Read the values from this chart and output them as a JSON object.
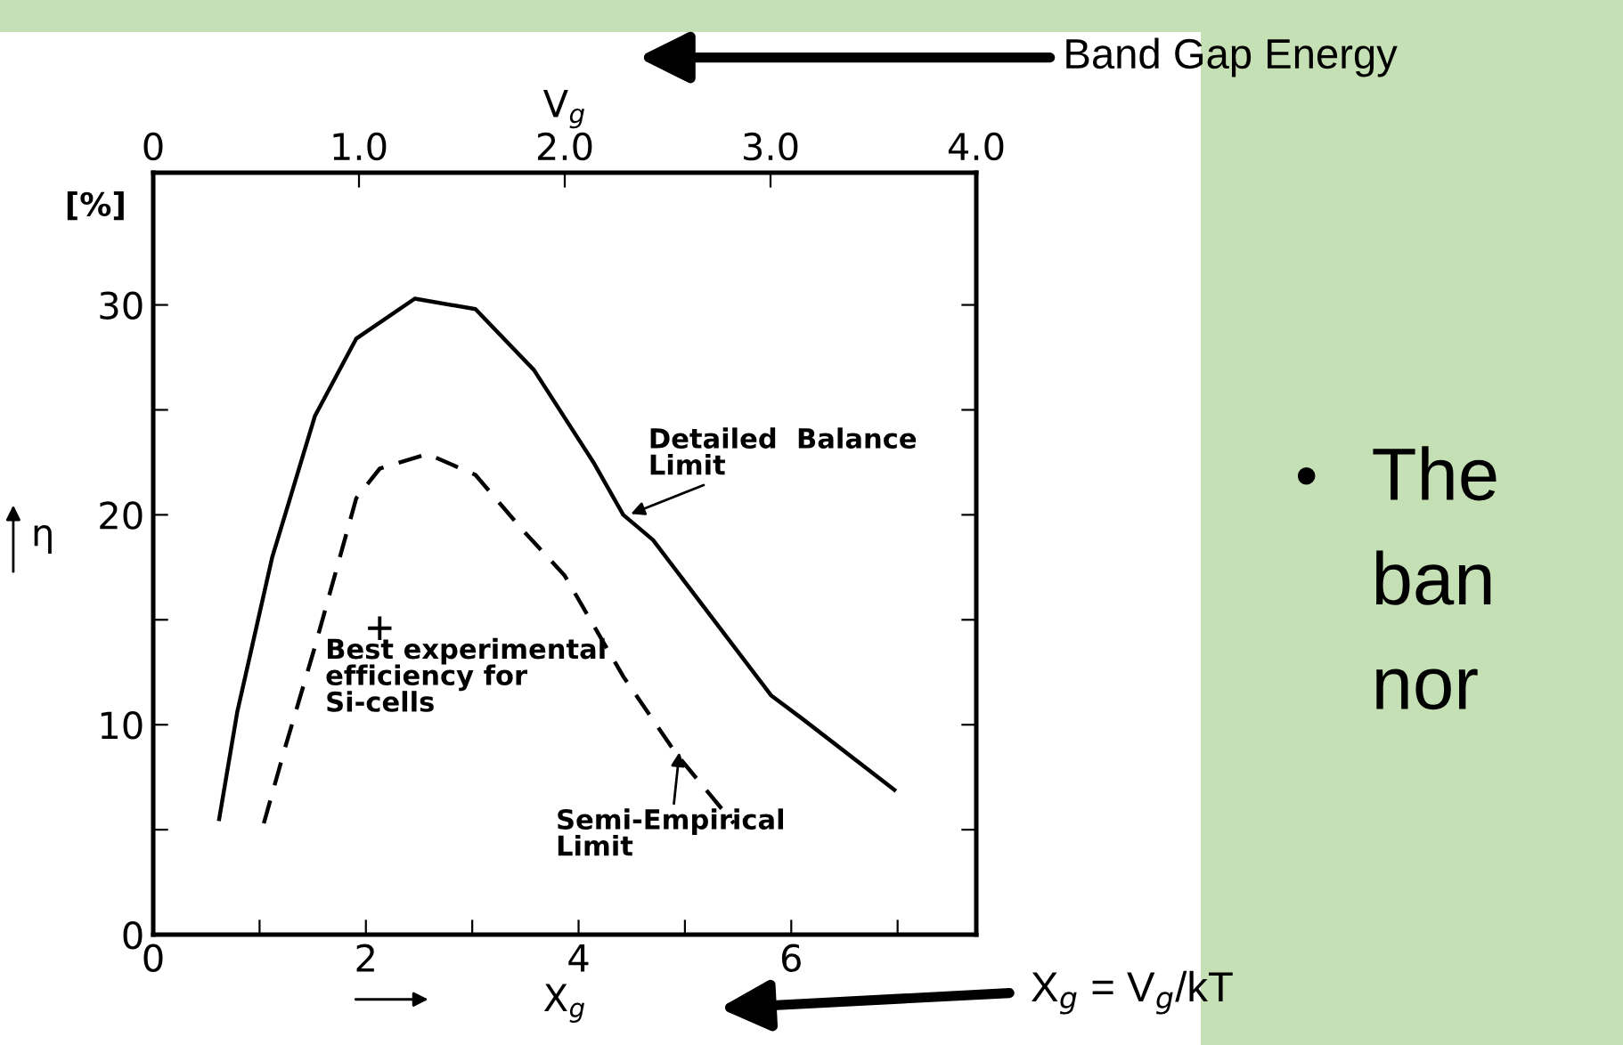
{
  "chart_data": {
    "type": "line",
    "xlabel": "X$_{g}$",
    "x2label": "V$_{g}$",
    "ylabel": "η",
    "xlim": [
      0,
      7.74
    ],
    "xticks": [
      0,
      {
        "value": 1,
        "label": null
      },
      2,
      {
        "value": 3,
        "label": null
      },
      4,
      {
        "value": 5,
        "label": null
      },
      6,
      {
        "value": 7,
        "label": null
      }
    ],
    "x2lim": [
      0,
      4
    ],
    "x2ticks": [
      0,
      {
        "value": 1,
        "label": "1.0"
      },
      {
        "value": 2,
        "label": "2.0"
      },
      {
        "value": 3,
        "label": "3.0"
      },
      {
        "value": 4,
        "label": "4.0"
      }
    ],
    "ylim": [
      0,
      36.3
    ],
    "yticks": [
      0,
      {
        "value": 5,
        "label": null
      },
      10,
      {
        "value": 15,
        "label": null
      },
      20,
      {
        "value": 25,
        "label": null
      },
      30
    ],
    "grid": false,
    "legend": false,
    "series": [
      {
        "color": "#000000",
        "line_style": "solid",
        "x": [
          0.62,
          0.79,
          1.12,
          1.24,
          1.52,
          1.91,
          2.46,
          3.03,
          3.58,
          4.14,
          4.42,
          4.7,
          5.81,
          6.1,
          6.97
        ],
        "values": [
          5.5,
          10.6,
          18,
          20,
          24.7,
          28.4,
          30.3,
          29.8,
          26.9,
          22.5,
          20,
          18.8,
          11.4,
          10.3,
          6.9
        ]
      },
      {
        "color": "#000000",
        "line_style": "dashed",
        "x": [
          1.04,
          1.24,
          1.52,
          1.91,
          2.13,
          2.58,
          3.03,
          3.47,
          3.87,
          4.42,
          4.92,
          5.46
        ],
        "values": [
          5.3,
          8.9,
          13.7,
          20.8,
          22.2,
          22.9,
          21.9,
          19.3,
          17.1,
          12.3,
          8.6,
          5.3
        ]
      },
      {
        "type": "scatter",
        "marker": "cross",
        "color": "#000000",
        "x": [
          2.13
        ],
        "values": [
          14.6
        ]
      }
    ],
    "annotations": [
      "[%]",
      {
        "text": "Detailed  Balance\nLimit",
        "x": 4.47,
        "y": 20
      },
      {
        "text": "Best experimental\nefficiency for\nSi-cells",
        "x": 2.13,
        "y": 14.6
      },
      {
        "text": "Semi-Empirical\nLimit",
        "x": 4.95,
        "y": 8.8
      },
      "Band Gap Energy",
      "X$_{g}$ = V$_{g}$/kT",
      "•",
      "The",
      "ban",
      "nor"
    ]
  }
}
